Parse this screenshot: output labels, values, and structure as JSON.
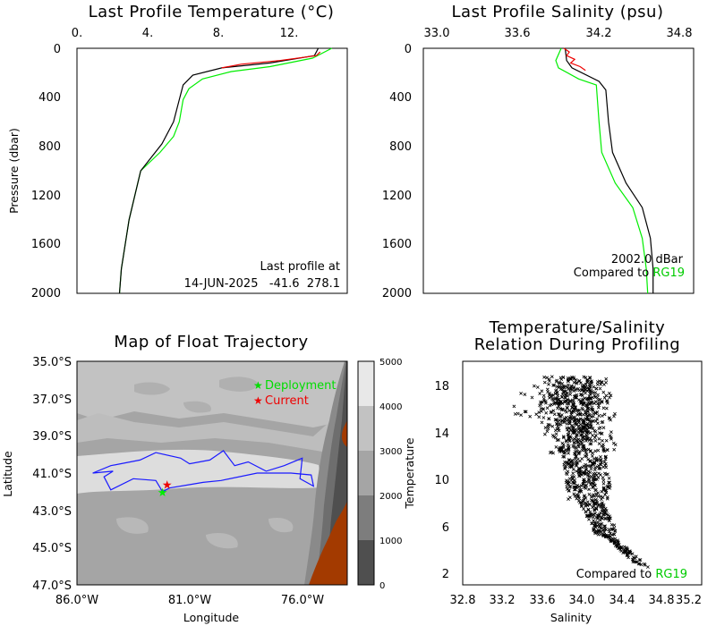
{
  "chart_data": [
    {
      "type": "line",
      "title": "Last Profile Temperature (°C)",
      "ylabel": "Pressure (dbar)",
      "xlim": [
        0,
        14
      ],
      "ylim": [
        2000,
        0
      ],
      "x_ticks": [
        "0.",
        "4.",
        "8.",
        "12."
      ],
      "y_ticks": [
        "0",
        "400",
        "800",
        "1200",
        "1600",
        "2000"
      ],
      "annotation_line1": "Last profile at",
      "annotation_line2": "14-JUN-2025   -41.6  278.1",
      "series": [
        {
          "color": "#00ee00",
          "points": [
            [
              13.2,
              0
            ],
            [
              12.2,
              80
            ],
            [
              10,
              150
            ],
            [
              8,
              190
            ],
            [
              6.5,
              250
            ],
            [
              5.8,
              330
            ],
            [
              5.5,
              420
            ],
            [
              5.3,
              600
            ],
            [
              5.0,
              720
            ],
            [
              4.3,
              850
            ],
            [
              3.3,
              1000
            ],
            [
              3.0,
              1200
            ],
            [
              2.7,
              1400
            ],
            [
              2.5,
              1600
            ],
            [
              2.3,
              1800
            ],
            [
              2.2,
              2000
            ]
          ]
        },
        {
          "color": "#000000",
          "points": [
            [
              12.5,
              0
            ],
            [
              12.3,
              60
            ],
            [
              10,
              120
            ],
            [
              7.5,
              160
            ],
            [
              6,
              220
            ],
            [
              5.5,
              300
            ],
            [
              5.3,
              420
            ],
            [
              5.0,
              600
            ],
            [
              4.4,
              780
            ],
            [
              3.3,
              1000
            ],
            [
              3.0,
              1200
            ],
            [
              2.7,
              1400
            ],
            [
              2.5,
              1600
            ],
            [
              2.3,
              1800
            ],
            [
              2.2,
              2000
            ]
          ]
        },
        {
          "color": "#ee0000",
          "points": [
            [
              12.6,
              30
            ],
            [
              12.4,
              60
            ],
            [
              10.5,
              100
            ],
            [
              8.5,
              130
            ],
            [
              7.5,
              160
            ]
          ]
        }
      ]
    },
    {
      "type": "line",
      "title": "Last Profile Salinity (psu)",
      "xlim": [
        33.0,
        35.0
      ],
      "ylim": [
        2000,
        0
      ],
      "x_ticks": [
        "33.0",
        "33.6",
        "34.2",
        "34.8"
      ],
      "y_ticks": [
        "0",
        "400",
        "800",
        "1200",
        "1600",
        "2000"
      ],
      "annotation_line1": "2002.0 dBar",
      "annotation_prefix": "Compared to ",
      "annotation_ref": "RG19",
      "series": [
        {
          "color": "#00ee00",
          "points": [
            [
              34.02,
              0
            ],
            [
              33.98,
              100
            ],
            [
              34.0,
              160
            ],
            [
              34.15,
              250
            ],
            [
              34.28,
              300
            ],
            [
              34.3,
              600
            ],
            [
              34.32,
              850
            ],
            [
              34.42,
              1100
            ],
            [
              34.55,
              1300
            ],
            [
              34.62,
              1550
            ],
            [
              34.65,
              1800
            ],
            [
              34.66,
              2000
            ]
          ]
        },
        {
          "color": "#000000",
          "points": [
            [
              34.05,
              0
            ],
            [
              34.06,
              100
            ],
            [
              34.1,
              160
            ],
            [
              34.3,
              270
            ],
            [
              34.35,
              340
            ],
            [
              34.37,
              600
            ],
            [
              34.4,
              850
            ],
            [
              34.5,
              1100
            ],
            [
              34.62,
              1300
            ],
            [
              34.68,
              1550
            ],
            [
              34.7,
              1800
            ],
            [
              34.7,
              2000
            ]
          ]
        },
        {
          "color": "#ee0000",
          "points": [
            [
              34.04,
              0
            ],
            [
              34.08,
              30
            ],
            [
              34.06,
              60
            ],
            [
              34.12,
              90
            ],
            [
              34.09,
              120
            ],
            [
              34.16,
              150
            ],
            [
              34.2,
              180
            ]
          ]
        }
      ]
    },
    {
      "type": "map",
      "title": "Map of Float Trajectory",
      "xlabel": "Longitude",
      "ylabel": "Latitude",
      "x_ticks": [
        "86.0°W",
        "81.0°W",
        "76.0°W"
      ],
      "y_ticks": [
        "35.0°S",
        "37.0°S",
        "39.0°S",
        "41.0°S",
        "43.0°S",
        "45.0°S",
        "47.0°S"
      ],
      "xlim": [
        -86,
        -74
      ],
      "ylim": [
        -47,
        -35
      ],
      "legend_deployment": "Deployment",
      "legend_current": "Current",
      "colorbar_ticks": [
        "5000",
        "4000",
        "3000",
        "2000",
        "1000",
        "0"
      ],
      "deployment": [
        -82.2,
        -42.0
      ],
      "current": [
        -82.0,
        -41.6
      ]
    },
    {
      "type": "scatter",
      "title_line1": "Temperature/Salinity",
      "title_line2": "Relation During Profiling",
      "xlabel": "Salinity",
      "ylabel": "Temperature",
      "xlim": [
        32.8,
        35.2
      ],
      "ylim": [
        0.8,
        19.8
      ],
      "x_ticks": [
        "32.8",
        "33.2",
        "33.6",
        "34.0",
        "34.4",
        "34.8",
        "35.2"
      ],
      "y_ticks": [
        "2",
        "6",
        "10",
        "14",
        "18"
      ],
      "annotation_prefix": "Compared to ",
      "annotation_ref": "RG19"
    }
  ],
  "colors": {
    "green": "#00ee00",
    "red": "#ee0000",
    "blue": "#1a1aff",
    "land": "#a33a00"
  }
}
